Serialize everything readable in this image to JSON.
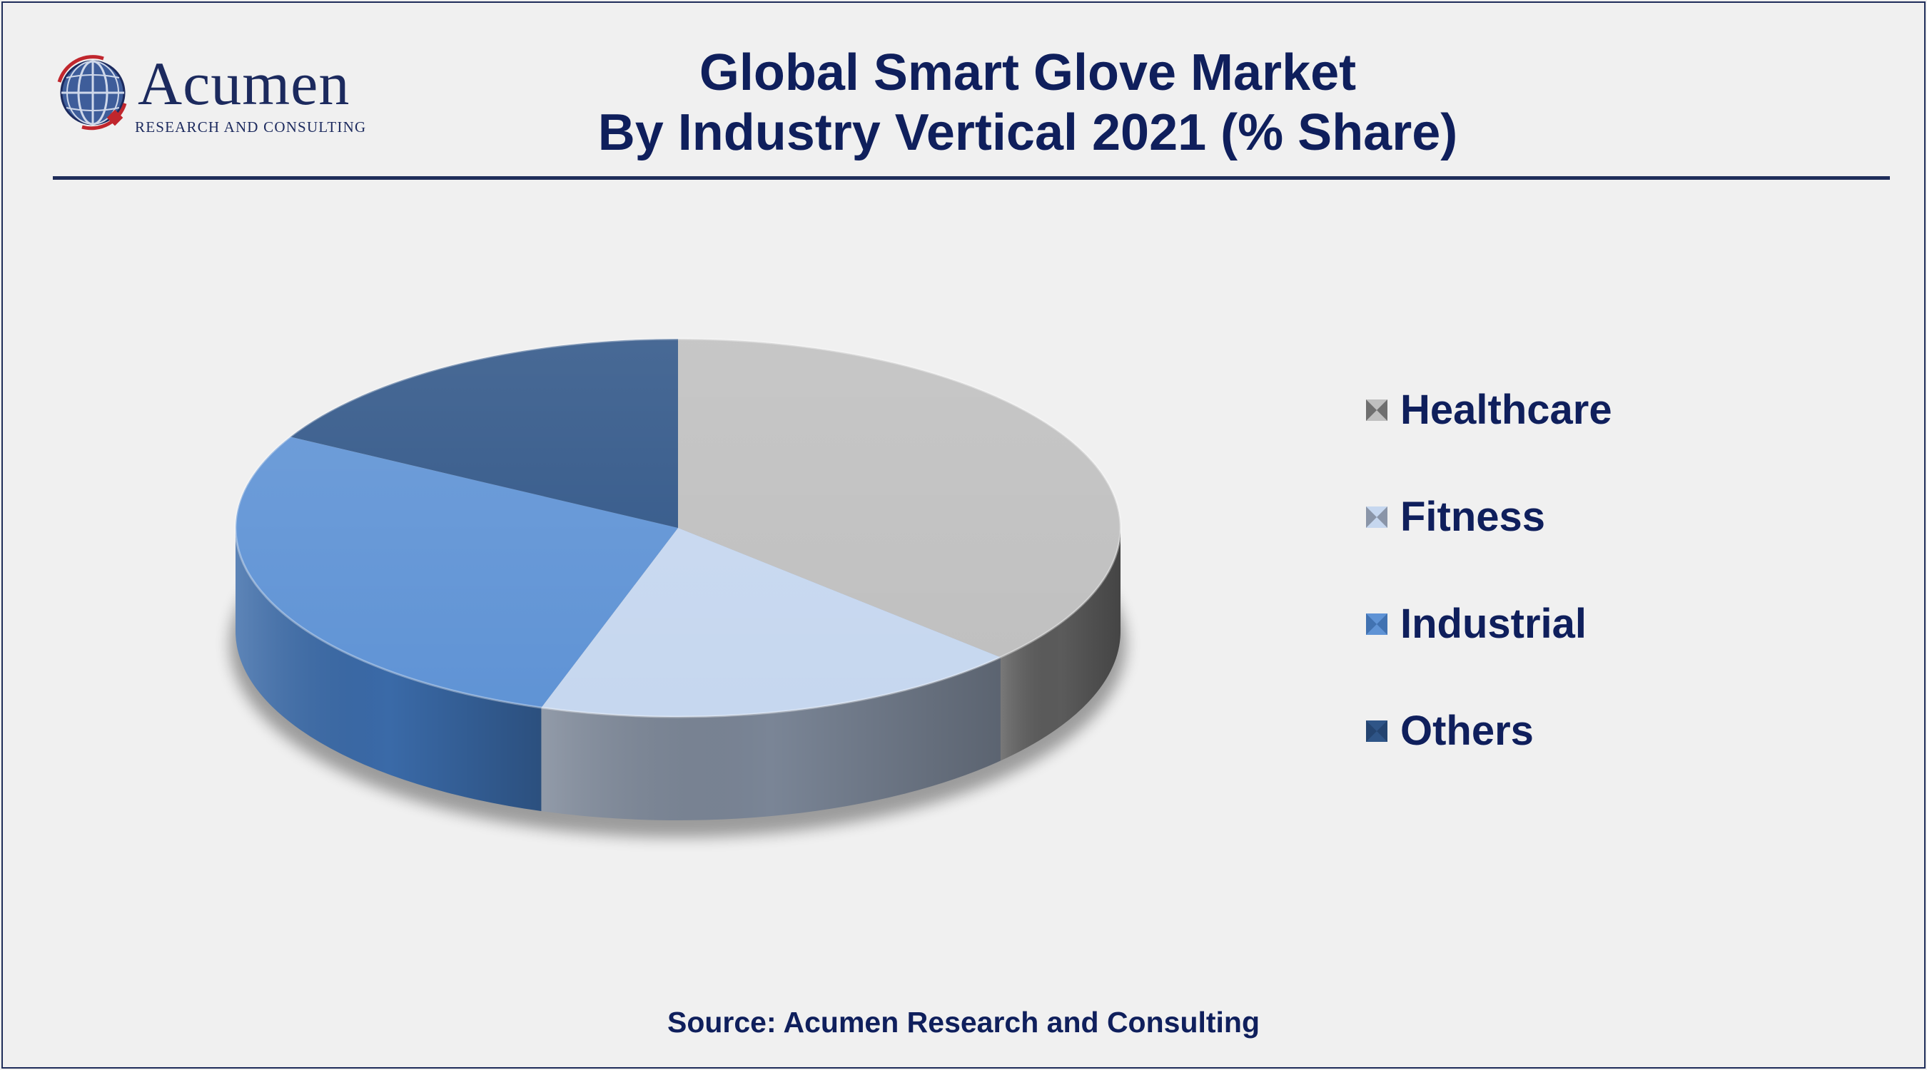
{
  "logo": {
    "name": "Acumen",
    "tagline": "RESEARCH AND CONSULTING"
  },
  "chart_data": {
    "type": "pie",
    "title": "Global Smart Glove Market",
    "subtitle": "By Industry Vertical 2021 (% Share)",
    "categories": [
      "Healthcare",
      "Fitness",
      "Industrial",
      "Others"
    ],
    "values": [
      37,
      18,
      28,
      17
    ],
    "colors": [
      "#bfbfbf",
      "#c6d7ef",
      "#5f93d5",
      "#2f5587"
    ],
    "side_colors": [
      "#5b5b5b",
      "#7a8596",
      "#3a6aa8",
      "#22406a"
    ],
    "legend_position": "right"
  },
  "source": "Source: Acumen Research and Consulting"
}
